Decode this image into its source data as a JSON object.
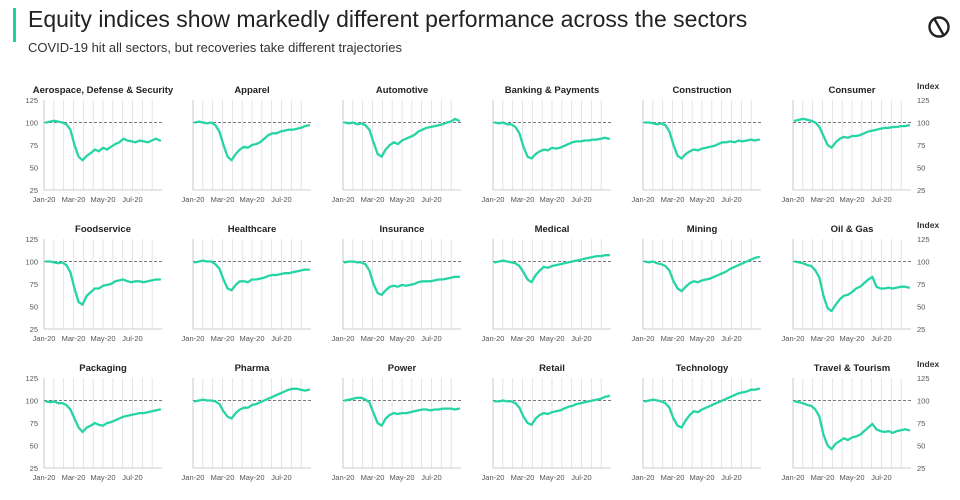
{
  "header": {
    "title": "Equity indices show markedly different performance across the sectors",
    "subtitle": "COVID-19 hit all sectors, but recoveries take different trajectories"
  },
  "logo": {
    "icon": "brand-logo-icon"
  },
  "colors": {
    "accent": "#1bd3a0",
    "line": "#27d4a6",
    "reference": "#777777",
    "grid": "#dddddd"
  },
  "axis": {
    "y_label": "Index",
    "y_ticks": [
      125,
      100,
      75,
      50,
      25
    ],
    "x_ticks": [
      "Jan-20",
      "Mar-20",
      "May-20",
      "Jul-20"
    ]
  },
  "chart_data": [
    {
      "type": "line",
      "title": "Aerospace, Defense & Security",
      "ylim": [
        25,
        125
      ],
      "reference": 100,
      "series": [
        {
          "values": [
            100,
            101,
            102,
            101,
            100,
            98,
            92,
            75,
            62,
            58,
            63,
            66,
            70,
            68,
            72,
            70,
            73,
            76,
            78,
            82,
            80,
            79,
            78,
            80,
            79,
            78,
            80,
            82,
            80
          ]
        }
      ]
    },
    {
      "type": "line",
      "title": "Apparel",
      "ylim": [
        25,
        125
      ],
      "reference": 100,
      "series": [
        {
          "values": [
            100,
            101,
            100,
            99,
            100,
            97,
            90,
            75,
            62,
            58,
            65,
            70,
            73,
            72,
            75,
            76,
            78,
            82,
            86,
            88,
            88,
            90,
            91,
            92,
            92,
            93,
            94,
            96,
            97
          ]
        }
      ]
    },
    {
      "type": "line",
      "title": "Automotive",
      "ylim": [
        25,
        125
      ],
      "reference": 100,
      "series": [
        {
          "values": [
            100,
            99,
            100,
            98,
            99,
            97,
            92,
            78,
            65,
            62,
            70,
            75,
            78,
            76,
            80,
            82,
            84,
            86,
            90,
            92,
            94,
            95,
            96,
            97,
            98,
            100,
            101,
            104,
            102
          ]
        }
      ]
    },
    {
      "type": "line",
      "title": "Banking & Payments",
      "ylim": [
        25,
        125
      ],
      "reference": 100,
      "series": [
        {
          "values": [
            100,
            99,
            100,
            98,
            98,
            95,
            88,
            73,
            62,
            60,
            65,
            68,
            70,
            69,
            72,
            71,
            72,
            74,
            76,
            78,
            79,
            79,
            80,
            80,
            81,
            81,
            82,
            83,
            82
          ]
        }
      ]
    },
    {
      "type": "line",
      "title": "Construction",
      "ylim": [
        25,
        125
      ],
      "reference": 100,
      "series": [
        {
          "values": [
            100,
            100,
            99,
            98,
            99,
            97,
            90,
            75,
            63,
            60,
            65,
            68,
            70,
            69,
            71,
            72,
            73,
            74,
            76,
            78,
            78,
            79,
            78,
            80,
            79,
            80,
            81,
            80,
            81
          ]
        }
      ]
    },
    {
      "type": "line",
      "title": "Consumer",
      "ylim": [
        25,
        125
      ],
      "reference": 100,
      "series": [
        {
          "values": [
            102,
            103,
            104,
            103,
            102,
            100,
            95,
            85,
            75,
            72,
            78,
            82,
            84,
            83,
            85,
            85,
            86,
            88,
            90,
            91,
            92,
            93,
            94,
            94,
            95,
            95,
            96,
            96,
            97
          ]
        }
      ]
    },
    {
      "type": "line",
      "title": "Foodservice",
      "ylim": [
        25,
        125
      ],
      "reference": 100,
      "series": [
        {
          "values": [
            100,
            100,
            99,
            98,
            99,
            96,
            88,
            70,
            55,
            52,
            62,
            66,
            70,
            70,
            73,
            74,
            75,
            78,
            79,
            80,
            78,
            77,
            78,
            78,
            77,
            78,
            79,
            80,
            80
          ]
        }
      ]
    },
    {
      "type": "line",
      "title": "Healthcare",
      "ylim": [
        25,
        125
      ],
      "reference": 100,
      "series": [
        {
          "values": [
            99,
            100,
            101,
            100,
            100,
            97,
            92,
            80,
            70,
            68,
            74,
            78,
            78,
            77,
            80,
            80,
            81,
            82,
            84,
            85,
            85,
            86,
            87,
            87,
            88,
            89,
            90,
            91,
            91
          ]
        }
      ]
    },
    {
      "type": "line",
      "title": "Insurance",
      "ylim": [
        25,
        125
      ],
      "reference": 100,
      "series": [
        {
          "values": [
            99,
            100,
            100,
            99,
            99,
            97,
            90,
            75,
            65,
            63,
            68,
            72,
            73,
            72,
            74,
            73,
            74,
            75,
            77,
            78,
            78,
            78,
            79,
            80,
            80,
            81,
            82,
            83,
            83
          ]
        }
      ]
    },
    {
      "type": "line",
      "title": "Medical",
      "ylim": [
        25,
        125
      ],
      "reference": 100,
      "series": [
        {
          "values": [
            99,
            100,
            101,
            100,
            99,
            98,
            95,
            88,
            80,
            77,
            85,
            90,
            94,
            93,
            95,
            96,
            97,
            98,
            99,
            100,
            101,
            102,
            103,
            104,
            105,
            106,
            106,
            107,
            107
          ]
        }
      ]
    },
    {
      "type": "line",
      "title": "Mining",
      "ylim": [
        25,
        125
      ],
      "reference": 100,
      "series": [
        {
          "values": [
            100,
            99,
            100,
            98,
            97,
            95,
            90,
            78,
            70,
            67,
            72,
            76,
            78,
            77,
            79,
            80,
            81,
            83,
            85,
            87,
            89,
            92,
            94,
            96,
            98,
            100,
            102,
            104,
            105
          ]
        }
      ]
    },
    {
      "type": "line",
      "title": "Oil & Gas",
      "ylim": [
        25,
        125
      ],
      "reference": 100,
      "series": [
        {
          "values": [
            100,
            99,
            98,
            96,
            95,
            90,
            82,
            62,
            48,
            45,
            52,
            58,
            62,
            63,
            66,
            70,
            72,
            76,
            80,
            83,
            72,
            70,
            70,
            71,
            70,
            71,
            72,
            72,
            71
          ]
        }
      ]
    },
    {
      "type": "line",
      "title": "Packaging",
      "ylim": [
        25,
        125
      ],
      "reference": 100,
      "series": [
        {
          "values": [
            99,
            98,
            99,
            97,
            97,
            95,
            90,
            80,
            70,
            65,
            70,
            72,
            75,
            73,
            72,
            75,
            76,
            78,
            80,
            82,
            83,
            84,
            85,
            86,
            86,
            87,
            88,
            89,
            90
          ]
        }
      ]
    },
    {
      "type": "line",
      "title": "Pharma",
      "ylim": [
        25,
        125
      ],
      "reference": 100,
      "series": [
        {
          "values": [
            99,
            100,
            101,
            100,
            100,
            99,
            96,
            88,
            82,
            80,
            86,
            90,
            92,
            92,
            95,
            96,
            98,
            100,
            102,
            104,
            106,
            108,
            110,
            112,
            113,
            113,
            112,
            111,
            112
          ]
        }
      ]
    },
    {
      "type": "line",
      "title": "Power",
      "ylim": [
        25,
        125
      ],
      "reference": 100,
      "series": [
        {
          "values": [
            100,
            101,
            102,
            103,
            103,
            101,
            98,
            86,
            75,
            72,
            80,
            84,
            86,
            85,
            86,
            86,
            87,
            88,
            89,
            90,
            90,
            89,
            90,
            90,
            91,
            91,
            91,
            90,
            91
          ]
        }
      ]
    },
    {
      "type": "line",
      "title": "Retail",
      "ylim": [
        25,
        125
      ],
      "reference": 100,
      "series": [
        {
          "values": [
            99,
            99,
            100,
            99,
            99,
            97,
            92,
            82,
            75,
            73,
            80,
            84,
            86,
            85,
            87,
            88,
            89,
            91,
            93,
            94,
            96,
            97,
            98,
            99,
            100,
            101,
            102,
            104,
            105
          ]
        }
      ]
    },
    {
      "type": "line",
      "title": "Technology",
      "ylim": [
        25,
        125
      ],
      "reference": 100,
      "series": [
        {
          "values": [
            99,
            100,
            101,
            100,
            99,
            97,
            92,
            80,
            72,
            70,
            78,
            84,
            88,
            87,
            90,
            92,
            94,
            96,
            98,
            100,
            102,
            104,
            106,
            108,
            109,
            110,
            112,
            112,
            113
          ]
        }
      ]
    },
    {
      "type": "line",
      "title": "Travel & Tourism",
      "ylim": [
        25,
        125
      ],
      "reference": 100,
      "series": [
        {
          "values": [
            99,
            98,
            97,
            95,
            94,
            90,
            82,
            62,
            50,
            46,
            52,
            55,
            58,
            56,
            59,
            60,
            62,
            66,
            70,
            74,
            68,
            66,
            65,
            66,
            64,
            66,
            67,
            68,
            67
          ]
        }
      ]
    }
  ]
}
